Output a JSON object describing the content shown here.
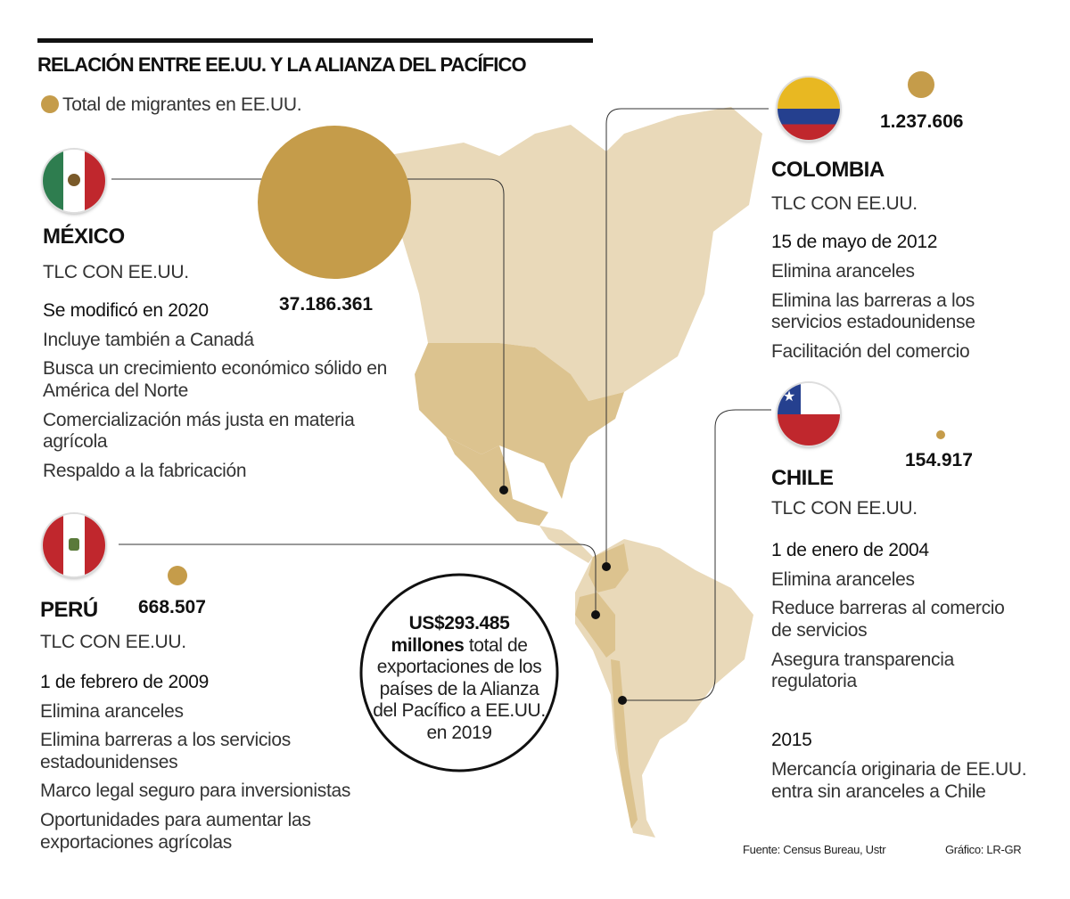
{
  "title": "RELACIÓN ENTRE EE.UU. Y LA ALIANZA DEL PACÍFICO",
  "legend": {
    "label": "Total de migrantes en EE.UU.",
    "color": "#c59c4a"
  },
  "colors": {
    "gold": "#c59c4a",
    "land": "#e9d9b9",
    "highlight": "#dcc38f"
  },
  "mexico": {
    "name": "MÉXICO",
    "migrants": "37.186.361",
    "tlc": "TLC CON EE.UU.",
    "date": "Se modificó en 2020",
    "items": [
      "Incluye también a Canadá",
      "Busca un crecimiento económico sólido en",
      "América del Norte",
      "Comercialización más justa en materia",
      "agrícola",
      "Respaldo a la fabricación"
    ]
  },
  "peru": {
    "name": "PERÚ",
    "migrants": "668.507",
    "tlc": "TLC CON EE.UU.",
    "date": "1 de febrero de 2009",
    "items": [
      "Elimina aranceles",
      "Elimina barreras a los servicios",
      "estadounidenses",
      "Marco legal seguro para inversionistas",
      "Oportunidades para aumentar las",
      "exportaciones agrícolas"
    ]
  },
  "colombia": {
    "name": "COLOMBIA",
    "migrants": "1.237.606",
    "tlc": "TLC CON EE.UU.",
    "date": "15 de mayo de 2012",
    "items": [
      "Elimina aranceles",
      "Elimina las barreras a los",
      "servicios estadounidense",
      "Facilitación del comercio"
    ]
  },
  "chile": {
    "name": "CHILE",
    "migrants": "154.917",
    "tlc": "TLC CON EE.UU.",
    "date": "1 de enero de 2004",
    "items": [
      "Elimina aranceles",
      "Reduce barreras al comercio",
      "de servicios",
      "Asegura transparencia",
      "regulatoria"
    ],
    "year2": "2015",
    "items2": [
      "Mercancía originaria de EE.UU.",
      "entra sin aranceles a Chile"
    ]
  },
  "exports": {
    "amount": "US$293.485",
    "unit": "millones",
    "lines": [
      "total de",
      "exportaciones de los",
      "países de la Alianza",
      "del Pacífico a EE.UU.",
      "en 2019"
    ]
  },
  "footer": {
    "source": "Fuente: Census Bureau, Ustr",
    "credit": "Gráfico: LR-GR"
  }
}
